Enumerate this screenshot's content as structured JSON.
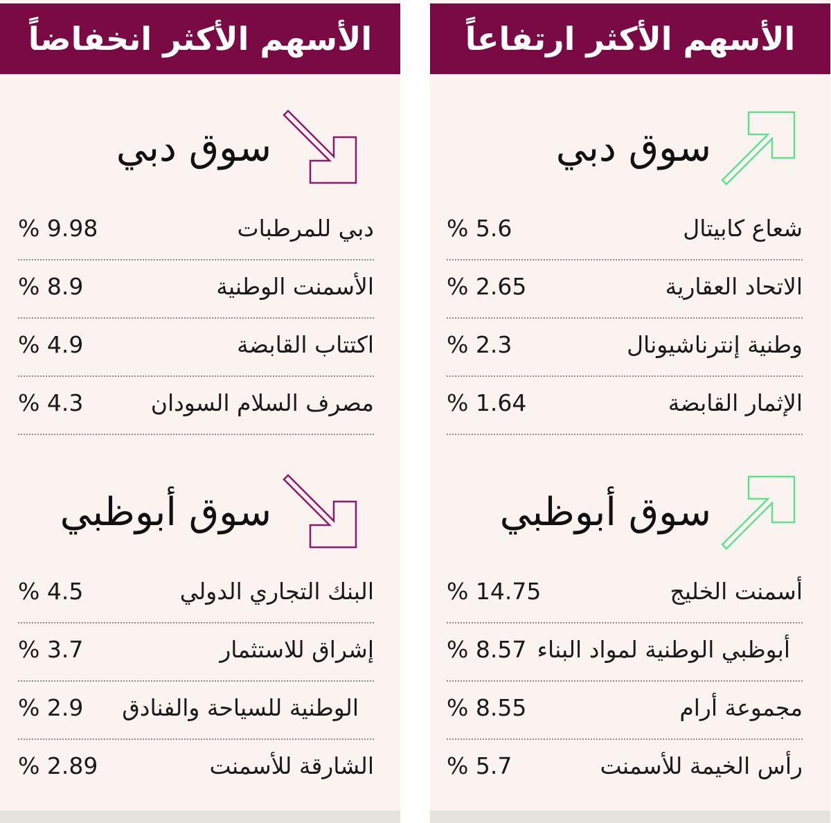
{
  "colors": {
    "header_bg": "#7a0a43",
    "panel_bg": "#fbf3ef",
    "up_arrow": "#5fe08f",
    "down_arrow": "#8a1a6a"
  },
  "gainers": {
    "title": "الأسهم الأكثر ارتفاعاً",
    "dubai": {
      "title": "سوق دبي",
      "arrow_icon": "up-right-arrow-icon",
      "stocks": [
        {
          "name": "شعاع كابيتال",
          "value": "% 5.6"
        },
        {
          "name": "الاتحاد العقارية",
          "value": "% 2.65"
        },
        {
          "name": "وطنية إنترناشيونال",
          "value": "% 2.3"
        },
        {
          "name": "الإثمار القابضة",
          "value": "% 1.64"
        }
      ]
    },
    "abudhabi": {
      "title": "سوق أبوظبي",
      "arrow_icon": "up-right-arrow-icon",
      "stocks": [
        {
          "name": "أسمنت الخليج",
          "value": "% 14.75"
        },
        {
          "name": "أبوظبي الوطنية لمواد البناء",
          "value": "% 8.57"
        },
        {
          "name": "مجموعة أرام",
          "value": "% 8.55"
        },
        {
          "name": "رأس الخيمة للأسمنت",
          "value": "% 5.7"
        }
      ]
    }
  },
  "losers": {
    "title": "الأسهم الأكثر انخفاضاً",
    "dubai": {
      "title": "سوق دبي",
      "arrow_icon": "down-right-arrow-icon",
      "stocks": [
        {
          "name": "دبي للمرطبات",
          "value": "% 9.98"
        },
        {
          "name": "الأسمنت الوطنية",
          "value": "% 8.9"
        },
        {
          "name": "اكتتاب القابضة",
          "value": "% 4.9"
        },
        {
          "name": "مصرف السلام السودان",
          "value": "% 4.3"
        }
      ]
    },
    "abudhabi": {
      "title": "سوق أبوظبي",
      "arrow_icon": "down-right-arrow-icon",
      "stocks": [
        {
          "name": "البنك التجاري الدولي",
          "value": "% 4.5"
        },
        {
          "name": "إشراق للاستثمار",
          "value": "% 3.7"
        },
        {
          "name": "الوطنية للسياحة والفنادق",
          "value": "% 2.9"
        },
        {
          "name": "الشارقة للأسمنت",
          "value": "% 2.89"
        }
      ]
    }
  }
}
